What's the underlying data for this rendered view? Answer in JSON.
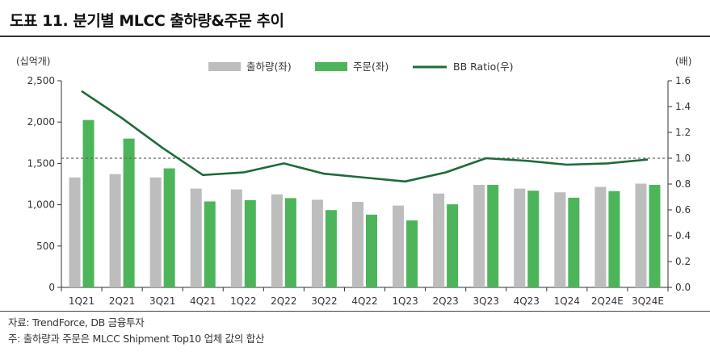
{
  "title": "도표 11. 분기별 MLCC 출하량&주문 추이",
  "source": "자료: TrendForce, DB 금융투자",
  "note": "주: 출하량과 주문은 MLCC Shipment Top10 업체 값의 합산",
  "colors": {
    "shipment": "#bdbdbd",
    "orders": "#4cb55a",
    "bb": "#1d6b38",
    "axis": "#333333",
    "refline": "#666666"
  },
  "chart_data": {
    "type": "bar",
    "categories": [
      "1Q21",
      "2Q21",
      "3Q21",
      "4Q21",
      "1Q22",
      "2Q22",
      "3Q22",
      "4Q22",
      "1Q23",
      "2Q23",
      "3Q23",
      "4Q23",
      "1Q24",
      "2Q24E",
      "3Q24E"
    ],
    "series": [
      {
        "name": "출하량(좌)",
        "type": "bar",
        "axis": "left",
        "values": [
          1330,
          1370,
          1330,
          1195,
          1185,
          1125,
          1060,
          1035,
          990,
          1135,
          1240,
          1195,
          1150,
          1215,
          1255
        ]
      },
      {
        "name": "주문(좌)",
        "type": "bar",
        "axis": "left",
        "values": [
          2025,
          1800,
          1440,
          1040,
          1055,
          1080,
          935,
          880,
          810,
          1005,
          1240,
          1170,
          1085,
          1165,
          1240
        ]
      },
      {
        "name": "BB Ratio(우)",
        "type": "line",
        "axis": "right",
        "values": [
          1.52,
          1.31,
          1.08,
          0.87,
          0.89,
          0.96,
          0.88,
          0.85,
          0.82,
          0.89,
          1.0,
          0.98,
          0.95,
          0.96,
          0.99
        ]
      }
    ],
    "ylabel_left": "(십억개)",
    "ylabel_right": "(배)",
    "ylim_left": [
      0,
      2500
    ],
    "ylim_right": [
      0.0,
      1.6
    ],
    "yticks_left": [
      "0",
      "500",
      "1,000",
      "1,500",
      "2,000",
      "2,500"
    ],
    "yticks_right": [
      "0.0",
      "0.2",
      "0.4",
      "0.6",
      "0.8",
      "1.0",
      "1.2",
      "1.4",
      "1.6"
    ],
    "reference_line": {
      "axis": "right",
      "value": 1.0,
      "style": "dashed"
    },
    "legend": "top-center",
    "grid": false
  }
}
